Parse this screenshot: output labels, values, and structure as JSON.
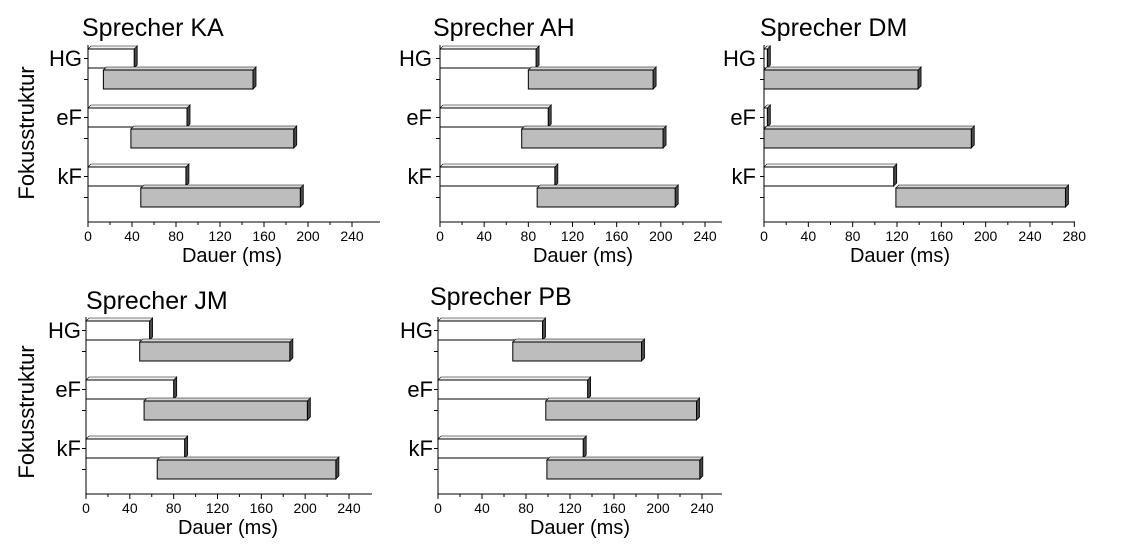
{
  "y_axis_label": "Fokusstruktur",
  "colors": {
    "bar_open": "#ffffff",
    "bar_shaded": "#bdbdbd",
    "bar_outline": "#000000",
    "bar_shadow": "#4a4a4a"
  },
  "chart_data": [
    {
      "type": "bar",
      "orientation": "horizontal",
      "title": "Sprecher KA",
      "xlabel": "Dauer (ms)",
      "ylabel": "Fokusstruktur",
      "categories": [
        "HG",
        "eF",
        "kF"
      ],
      "xlim": [
        0,
        260
      ],
      "xticks": [
        0,
        40,
        80,
        120,
        160,
        200,
        240
      ],
      "series": [
        {
          "fill": "open",
          "values": [
            [
              0,
              42
            ],
            [
              0,
              90
            ],
            [
              0,
              89
            ]
          ]
        },
        {
          "fill": "shaded",
          "values": [
            [
              14,
              150
            ],
            [
              39,
              187
            ],
            [
              48,
              193
            ]
          ]
        }
      ]
    },
    {
      "type": "bar",
      "orientation": "horizontal",
      "title": "Sprecher AH",
      "xlabel": "Dauer (ms)",
      "ylabel": "",
      "categories": [
        "HG",
        "eF",
        "kF"
      ],
      "xlim": [
        0,
        260
      ],
      "xticks": [
        0,
        40,
        80,
        120,
        160,
        200,
        240
      ],
      "series": [
        {
          "fill": "open",
          "values": [
            [
              0,
              87
            ],
            [
              0,
              98
            ],
            [
              0,
              104
            ]
          ]
        },
        {
          "fill": "shaded",
          "values": [
            [
              80,
              193
            ],
            [
              74,
              202
            ],
            [
              88,
              213
            ]
          ]
        }
      ]
    },
    {
      "type": "bar",
      "orientation": "horizontal",
      "title": "Sprecher DM",
      "xlabel": "Dauer (ms)",
      "ylabel": "",
      "categories": [
        "HG",
        "eF",
        "kF"
      ],
      "xlim": [
        0,
        285
      ],
      "xticks": [
        0,
        40,
        80,
        120,
        160,
        200,
        240,
        280
      ],
      "series": [
        {
          "fill": "open",
          "values": [
            [
              0,
              3
            ],
            [
              0,
              3
            ],
            [
              0,
              117
            ]
          ]
        },
        {
          "fill": "shaded",
          "values": [
            [
              0,
              139
            ],
            [
              0,
              187
            ],
            [
              119,
              272
            ]
          ]
        }
      ]
    },
    {
      "type": "bar",
      "orientation": "horizontal",
      "title": "Sprecher JM",
      "xlabel": "Dauer (ms)",
      "ylabel": "Fokusstruktur",
      "categories": [
        "HG",
        "eF",
        "kF"
      ],
      "xlim": [
        0,
        260
      ],
      "xticks": [
        0,
        40,
        80,
        120,
        160,
        200,
        240
      ],
      "series": [
        {
          "fill": "open",
          "values": [
            [
              0,
              58
            ],
            [
              0,
              80
            ],
            [
              0,
              90
            ]
          ]
        },
        {
          "fill": "shaded",
          "values": [
            [
              49,
              186
            ],
            [
              53,
              202
            ],
            [
              65,
              228
            ]
          ]
        }
      ]
    },
    {
      "type": "bar",
      "orientation": "horizontal",
      "title": "Sprecher PB",
      "xlabel": "Dauer (ms)",
      "ylabel": "",
      "categories": [
        "HG",
        "eF",
        "kF"
      ],
      "xlim": [
        0,
        260
      ],
      "xticks": [
        0,
        40,
        80,
        120,
        160,
        200,
        240
      ],
      "series": [
        {
          "fill": "open",
          "values": [
            [
              0,
              95
            ],
            [
              0,
              136
            ],
            [
              0,
              132
            ]
          ]
        },
        {
          "fill": "shaded",
          "values": [
            [
              68,
              185
            ],
            [
              98,
              235
            ],
            [
              99,
              238
            ]
          ]
        }
      ]
    }
  ]
}
